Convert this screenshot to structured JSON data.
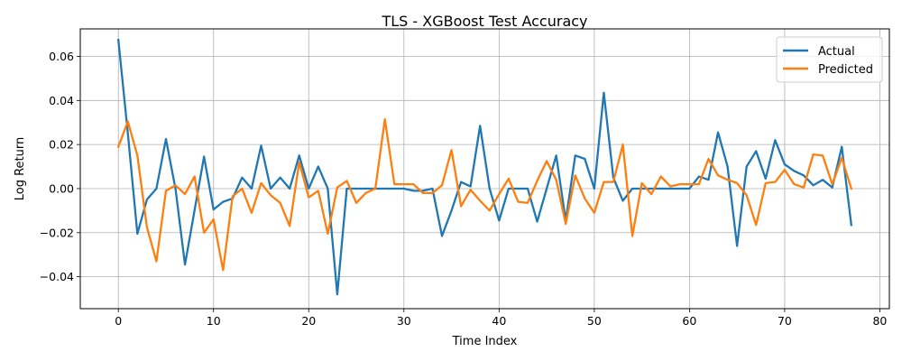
{
  "chart_data": {
    "type": "line",
    "title": "TLS - XGBoost Test Accuracy",
    "xlabel": "Time Index",
    "ylabel": "Log Return",
    "xlim": [
      -4,
      81
    ],
    "ylim": [
      -0.0545,
      0.0725
    ],
    "xticks": [
      0,
      10,
      20,
      30,
      40,
      50,
      60,
      70,
      80
    ],
    "yticks": [
      -0.04,
      -0.02,
      0.0,
      0.02,
      0.04,
      0.06
    ],
    "ytick_labels": [
      "−0.04",
      "−0.02",
      "0.00",
      "0.02",
      "0.04",
      "0.06"
    ],
    "grid": true,
    "legend_position": "top-right",
    "x": [
      0,
      1,
      2,
      3,
      4,
      5,
      6,
      7,
      8,
      9,
      10,
      11,
      12,
      13,
      14,
      15,
      16,
      17,
      18,
      19,
      20,
      21,
      22,
      23,
      24,
      25,
      26,
      27,
      28,
      29,
      30,
      31,
      32,
      33,
      34,
      35,
      36,
      37,
      38,
      39,
      40,
      41,
      42,
      43,
      44,
      45,
      46,
      47,
      48,
      49,
      50,
      51,
      52,
      53,
      54,
      55,
      56,
      57,
      58,
      59,
      60,
      61,
      62,
      63,
      64,
      65,
      66,
      67,
      68,
      69,
      70,
      71,
      72,
      73,
      74,
      75,
      76,
      77
    ],
    "series": [
      {
        "name": "Actual",
        "color": "#1f77b4",
        "values": [
          0.0675,
          0.025,
          -0.0205,
          -0.005,
          0.0,
          0.0225,
          0.0,
          -0.0345,
          -0.01,
          0.0145,
          -0.0095,
          -0.006,
          -0.0045,
          0.005,
          0.0,
          0.0195,
          0.0,
          0.005,
          0.0,
          0.015,
          0.0,
          0.01,
          0.0,
          -0.048,
          0.0,
          0.0,
          0.0,
          0.0,
          0.0,
          0.0,
          0.0,
          -0.001,
          -0.001,
          0.0,
          -0.0215,
          -0.01,
          0.003,
          0.001,
          0.0285,
          0.0,
          -0.0145,
          0.0,
          0.0,
          0.0,
          -0.015,
          0.0,
          0.015,
          -0.0145,
          0.015,
          0.0135,
          0.0,
          0.0435,
          0.005,
          -0.0055,
          0.0,
          0.0,
          0.0,
          0.0,
          0.0,
          0.0,
          0.0,
          0.0055,
          0.004,
          0.0255,
          0.01,
          -0.026,
          0.01,
          0.017,
          0.0045,
          0.022,
          0.011,
          0.008,
          0.006,
          0.0015,
          0.004,
          0.0005,
          0.019,
          -0.0165
        ]
      },
      {
        "name": "Predicted",
        "color": "#ff7f0e",
        "values": [
          0.019,
          0.0305,
          0.015,
          -0.0175,
          -0.033,
          -0.001,
          0.0015,
          -0.0025,
          0.0055,
          -0.02,
          -0.014,
          -0.037,
          -0.0035,
          0.0,
          -0.011,
          0.0025,
          -0.003,
          -0.0065,
          -0.017,
          0.012,
          -0.004,
          -0.001,
          -0.0205,
          0.0005,
          0.0035,
          -0.0065,
          -0.002,
          0.0,
          0.0315,
          0.002,
          0.002,
          0.002,
          -0.002,
          -0.002,
          0.0015,
          0.0175,
          -0.008,
          -0.0005,
          -0.0055,
          -0.01,
          -0.0025,
          0.0045,
          -0.006,
          -0.0065,
          0.0035,
          0.0125,
          0.004,
          -0.016,
          0.006,
          -0.0045,
          -0.011,
          0.003,
          0.003,
          0.02,
          -0.0215,
          0.0025,
          -0.0025,
          0.0055,
          0.001,
          0.002,
          0.002,
          0.002,
          0.0135,
          0.006,
          0.004,
          0.0025,
          -0.003,
          -0.0165,
          0.0025,
          0.003,
          0.0085,
          0.002,
          0.0005,
          0.0155,
          0.015,
          0.002,
          0.014,
          0.0
        ]
      }
    ]
  }
}
